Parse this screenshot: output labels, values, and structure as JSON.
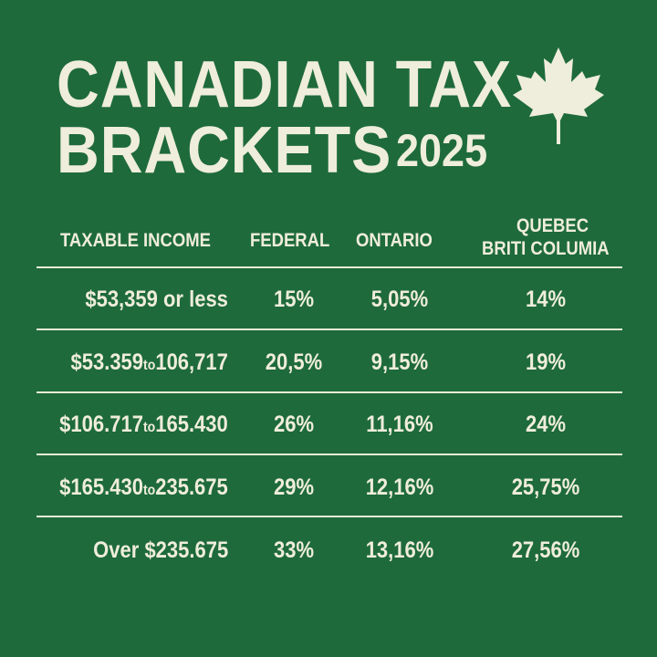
{
  "title": {
    "line1": "CANADIAN TAX",
    "line2": "BRACKETS",
    "year": "2025"
  },
  "icon": "maple-leaf-icon",
  "colors": {
    "background": "#1e6a3b",
    "text": "#efeddb"
  },
  "table": {
    "headers": [
      "TAXABLE INCOME",
      "FEDERAL",
      "ONTARIO",
      "QUEBEC",
      "BRITI COLUMIA"
    ],
    "rows": [
      {
        "income": "$53,359 or less",
        "income_parts": null,
        "federal": "15%",
        "ontario": "5,05%",
        "quebec_bc": "14%"
      },
      {
        "income_from": "$53.359",
        "to": "to",
        "income_to": "106,717",
        "federal": "20,5%",
        "ontario": "9,15%",
        "quebec_bc": "19%"
      },
      {
        "income_from": "$106.717",
        "to": "to",
        "income_to": "165.430",
        "federal": "26%",
        "ontario": "11,16%",
        "quebec_bc": "24%"
      },
      {
        "income_from": "$165.430",
        "to": "to",
        "income_to": "235.675",
        "federal": "29%",
        "ontario": "12,16%",
        "quebec_bc": "25,75%"
      },
      {
        "income": "Over $235.675",
        "federal": "33%",
        "ontario": "13,16%",
        "quebec_bc": "27,56%"
      }
    ]
  }
}
